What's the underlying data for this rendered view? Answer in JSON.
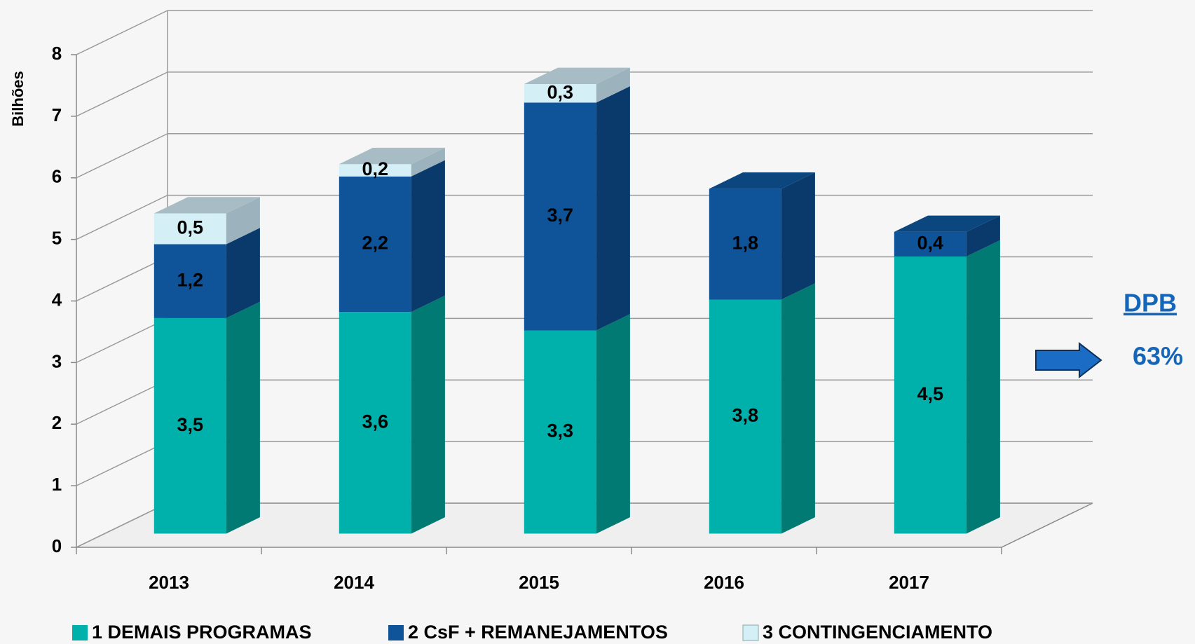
{
  "chart_data": {
    "type": "bar3d_stacked",
    "y_label": "Bilhões",
    "categories": [
      "2013",
      "2014",
      "2015",
      "2016",
      "2017"
    ],
    "series": [
      {
        "name": "1 DEMAIS PROGRAMAS",
        "color": "#00b0aa",
        "values": [
          3.5,
          3.6,
          3.3,
          3.8,
          4.5
        ],
        "value_labels": [
          "3,5",
          "3,6",
          "3,3",
          "3,8",
          "4,5"
        ]
      },
      {
        "name": "2 CsF + REMANEJAMENTOS",
        "color": "#0f5499",
        "values": [
          1.2,
          2.2,
          3.7,
          1.8,
          0.4
        ],
        "value_labels": [
          "1,2",
          "2,2",
          "3,7",
          "1,8",
          "0,4"
        ]
      },
      {
        "name": "3 CONTINGENCIAMENTO",
        "color": "#d5eff7",
        "values": [
          0.5,
          0.2,
          0.3,
          null,
          null
        ],
        "value_labels": [
          "0,5",
          "0,2",
          "0,3",
          null,
          null
        ]
      }
    ],
    "ylim": [
      0,
      8
    ],
    "yticks": [
      0,
      1,
      2,
      3,
      4,
      5,
      6,
      7,
      8
    ],
    "grid": true,
    "legend": "bottom",
    "annotations": [
      "DPB",
      "63%"
    ]
  }
}
